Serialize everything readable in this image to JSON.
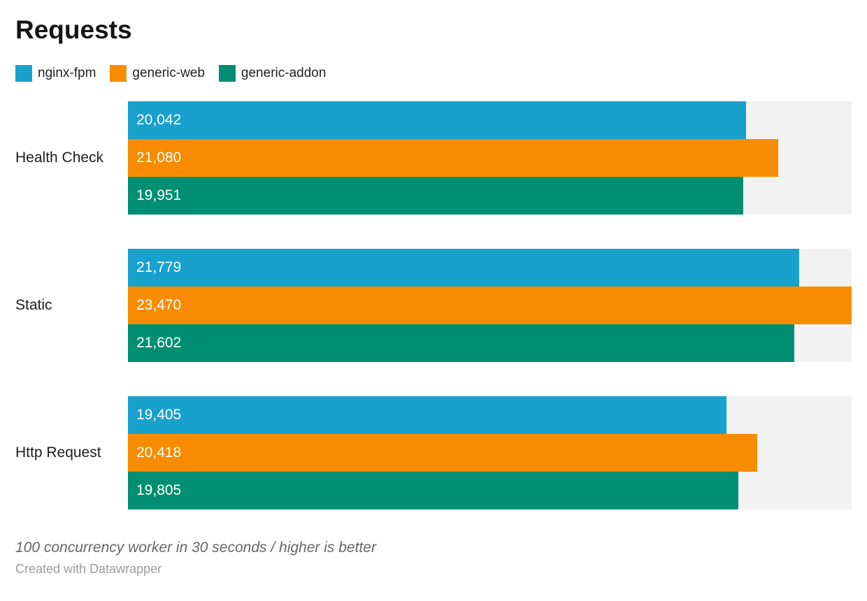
{
  "title": "Requests",
  "chart_data": {
    "type": "bar",
    "orientation": "horizontal",
    "title": "Requests",
    "categories": [
      "Health Check",
      "Static",
      "Http Request"
    ],
    "series": [
      {
        "name": "nginx-fpm",
        "color": "#18A1CD",
        "values": [
          20042,
          21779,
          19405
        ]
      },
      {
        "name": "generic-web",
        "color": "#F88C00",
        "values": [
          21080,
          23470,
          20418
        ]
      },
      {
        "name": "generic-addon",
        "color": "#008F72",
        "values": [
          19951,
          21602,
          19805
        ]
      }
    ],
    "labels": [
      [
        "20,042",
        "21,080",
        "19,951"
      ],
      [
        "21,779",
        "23,470",
        "21,602"
      ],
      [
        "19,405",
        "20,418",
        "19,805"
      ]
    ],
    "xmax": 23470,
    "xmin": 0,
    "track_color": "#F2F2F2",
    "grid": false,
    "legend_position": "top",
    "value_label_position": "inside-left",
    "xlabel": "",
    "ylabel": ""
  },
  "footer": {
    "note": "100 concurrency worker in 30 seconds / higher is better",
    "attribution": "Created with Datawrapper"
  }
}
